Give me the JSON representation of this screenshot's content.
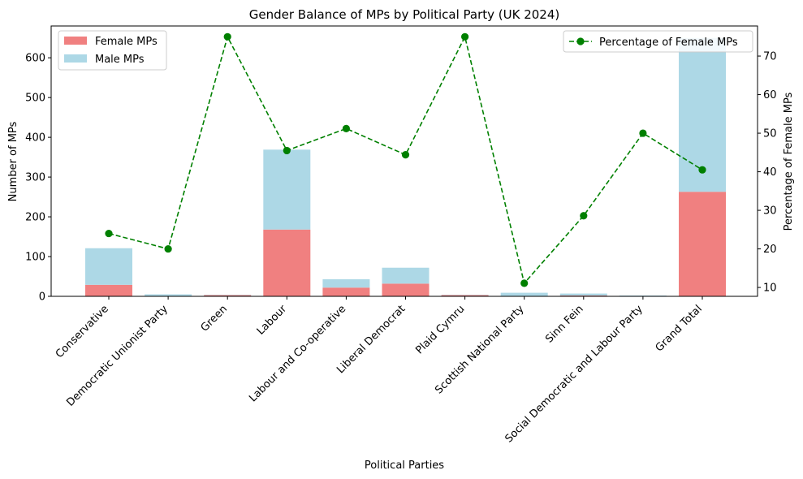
{
  "chart_data": {
    "type": "bar",
    "title": "Gender Balance of MPs by Political Party (UK 2024)",
    "xlabel": "Political Parties",
    "ylabel": "Number of MPs",
    "y2label": "Percentage of Female MPs",
    "categories": [
      "Conservative",
      "Democratic Unionist Party",
      "Green",
      "Labour",
      "Labour and Co-operative",
      "Liberal Democrat",
      "Plaid Cymru",
      "Scottish National Party",
      "Sinn Fein",
      "Social Democratic and Labour Party",
      "Grand Total"
    ],
    "series": [
      {
        "name": "Female MPs",
        "kind": "bar",
        "axis": "left",
        "color": "#f08080",
        "values": [
          29,
          1,
          3,
          168,
          22,
          32,
          3,
          1,
          2,
          1,
          263
        ]
      },
      {
        "name": "Male MPs",
        "kind": "bar",
        "axis": "left",
        "color": "#add8e6",
        "values": [
          92,
          4,
          1,
          201,
          21,
          40,
          1,
          8,
          5,
          1,
          387
        ]
      },
      {
        "name": "Percentage of Female MPs",
        "kind": "line",
        "axis": "right",
        "color": "#008000",
        "linestyle": "dashed",
        "marker": "circle",
        "values": [
          24,
          20,
          75,
          45.5,
          51.2,
          44.4,
          75,
          11.1,
          28.6,
          50,
          40.5
        ]
      }
    ],
    "ylim": [
      0,
      680
    ],
    "y2lim": [
      7.7,
      77.8
    ],
    "yticks": [
      0,
      100,
      200,
      300,
      400,
      500,
      600
    ],
    "y2ticks": [
      10,
      20,
      30,
      40,
      50,
      60,
      70
    ],
    "legend_left": "upper-left",
    "legend_right": "upper-right",
    "grid": false
  }
}
